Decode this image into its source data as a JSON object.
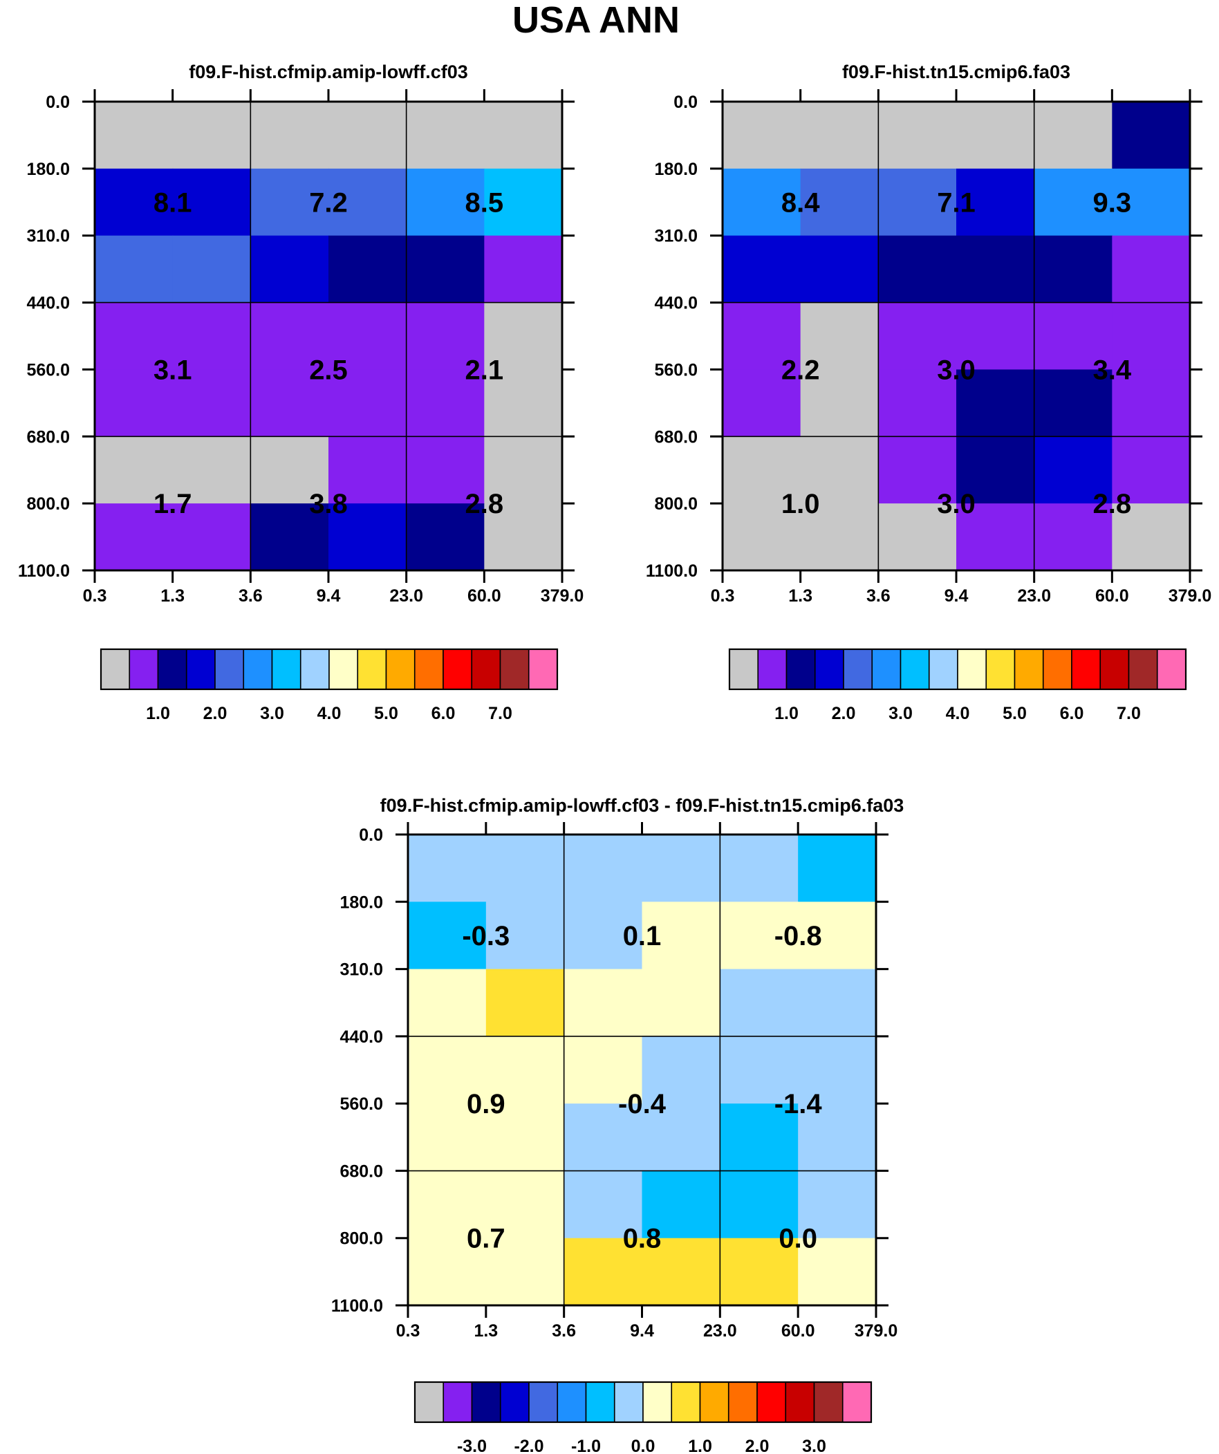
{
  "figure_title": "USA ANN",
  "palette": [
    "#c8c8c8",
    "#8520f0",
    "#00008c",
    "#0000d2",
    "#4169e1",
    "#1e90ff",
    "#00bfff",
    "#a0d2ff",
    "#ffffc8",
    "#ffe132",
    "#ffaa00",
    "#ff6e00",
    "#ff0000",
    "#c80000",
    "#a02828",
    "#ff69b4"
  ],
  "chart_data": [
    {
      "type": "heatmap",
      "title": "f09.F-hist.cfmip.amip-lowff.cf03",
      "x_ticks": [
        "0.3",
        "1.3",
        "3.6",
        "9.4",
        "23.0",
        "60.0",
        "379.0"
      ],
      "y_ticks": [
        "0.0",
        "180.0",
        "310.0",
        "440.0",
        "560.0",
        "680.0",
        "800.0",
        "1100.0"
      ],
      "cell_colors": [
        [
          0,
          0,
          0,
          0,
          0,
          0
        ],
        [
          3,
          3,
          4,
          4,
          5,
          6
        ],
        [
          4,
          4,
          3,
          2,
          2,
          1
        ],
        [
          1,
          1,
          1,
          1,
          1,
          0
        ],
        [
          1,
          1,
          1,
          1,
          1,
          0
        ],
        [
          0,
          0,
          0,
          1,
          1,
          0
        ],
        [
          1,
          1,
          2,
          3,
          2,
          0
        ]
      ],
      "cell_labels": [
        [
          "8.1",
          "7.2",
          "8.5"
        ],
        [
          "3.1",
          "2.5",
          "2.1"
        ],
        [
          "1.7",
          "3.8",
          "2.8"
        ]
      ],
      "colorbar_labels": [
        "1.0",
        "2.0",
        "3.0",
        "4.0",
        "5.0",
        "6.0",
        "7.0"
      ]
    },
    {
      "type": "heatmap",
      "title": "f09.F-hist.tn15.cmip6.fa03",
      "x_ticks": [
        "0.3",
        "1.3",
        "3.6",
        "9.4",
        "23.0",
        "60.0",
        "379.0"
      ],
      "y_ticks": [
        "0.0",
        "180.0",
        "310.0",
        "440.0",
        "560.0",
        "680.0",
        "800.0",
        "1100.0"
      ],
      "cell_colors": [
        [
          0,
          0,
          0,
          0,
          0,
          2
        ],
        [
          5,
          4,
          4,
          3,
          5,
          5
        ],
        [
          3,
          3,
          2,
          2,
          2,
          1
        ],
        [
          1,
          0,
          1,
          1,
          1,
          1
        ],
        [
          1,
          0,
          1,
          2,
          2,
          1
        ],
        [
          0,
          0,
          1,
          2,
          3,
          1
        ],
        [
          0,
          0,
          0,
          1,
          1,
          0
        ]
      ],
      "cell_labels": [
        [
          "8.4",
          "7.1",
          "9.3"
        ],
        [
          "2.2",
          "3.0",
          "3.4"
        ],
        [
          "1.0",
          "3.0",
          "2.8"
        ]
      ],
      "colorbar_labels": [
        "1.0",
        "2.0",
        "3.0",
        "4.0",
        "5.0",
        "6.0",
        "7.0"
      ]
    },
    {
      "type": "heatmap",
      "title": "f09.F-hist.cfmip.amip-lowff.cf03 - f09.F-hist.tn15.cmip6.fa03",
      "x_ticks": [
        "0.3",
        "1.3",
        "3.6",
        "9.4",
        "23.0",
        "60.0",
        "379.0"
      ],
      "y_ticks": [
        "0.0",
        "180.0",
        "310.0",
        "440.0",
        "560.0",
        "680.0",
        "800.0",
        "1100.0"
      ],
      "cell_colors": [
        [
          7,
          7,
          7,
          7,
          7,
          6
        ],
        [
          6,
          7,
          7,
          8,
          8,
          8
        ],
        [
          8,
          9,
          8,
          8,
          7,
          7
        ],
        [
          8,
          8,
          8,
          7,
          7,
          7
        ],
        [
          8,
          8,
          7,
          7,
          6,
          7
        ],
        [
          8,
          8,
          7,
          6,
          6,
          7
        ],
        [
          8,
          8,
          9,
          9,
          9,
          8
        ]
      ],
      "cell_labels": [
        [
          "-0.3",
          "0.1",
          "-0.8"
        ],
        [
          "0.9",
          "-0.4",
          "-1.4"
        ],
        [
          "0.7",
          "0.8",
          "0.0"
        ]
      ],
      "colorbar_labels": [
        "-3.0",
        "-2.0",
        "-1.0",
        "0.0",
        "1.0",
        "2.0",
        "3.0"
      ]
    }
  ]
}
